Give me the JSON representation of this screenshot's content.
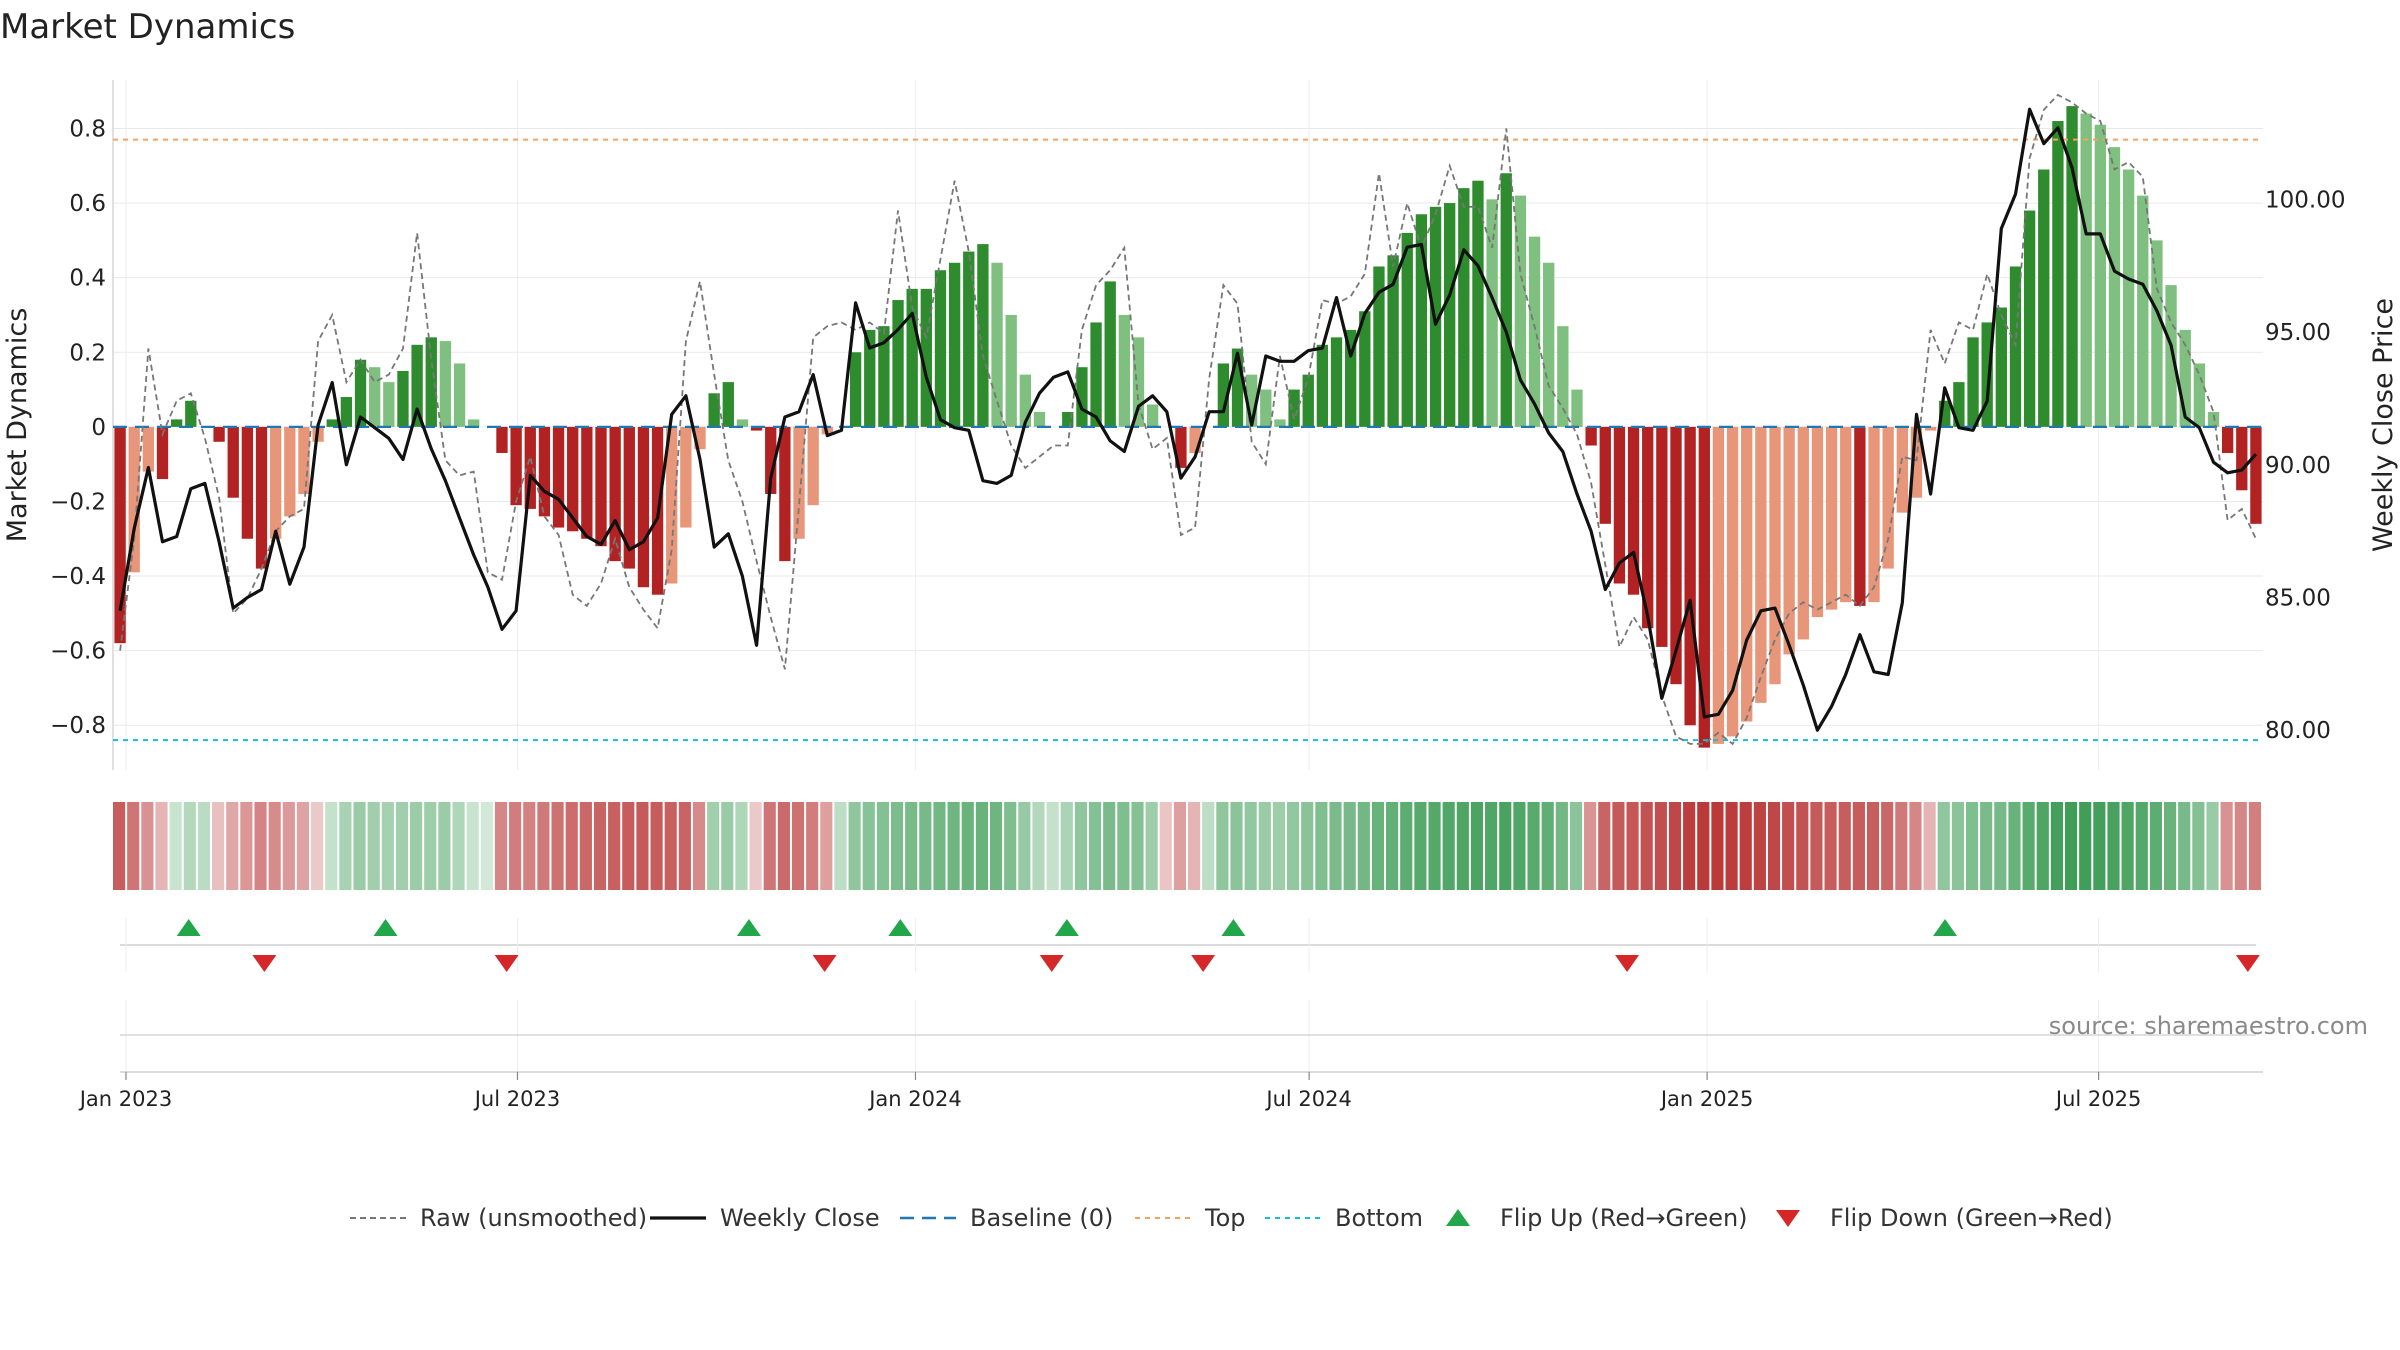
{
  "chart_data": {
    "type": "bar",
    "title": "Market Dynamics",
    "ylabel_left": "Market Dynamics",
    "ylabel_right": "Weekly Close Price",
    "source": "source: sharemaestro.com",
    "ylim_left": [
      -0.92,
      0.93
    ],
    "ylim_right": [
      78.5,
      104.5
    ],
    "yticks_left": [
      "0.8",
      "0.6",
      "0.4",
      "0.2",
      "0",
      "−0.2",
      "−0.4",
      "−0.6",
      "−0.8"
    ],
    "yticks_left_values": [
      0.8,
      0.6,
      0.4,
      0.2,
      0,
      -0.2,
      -0.4,
      -0.6,
      -0.8
    ],
    "yticks_right": [
      "100.00",
      "95.00",
      "90.00",
      "85.00",
      "80.00"
    ],
    "yticks_right_values": [
      100,
      95,
      90,
      85,
      80
    ],
    "x_start": "2022-12-26",
    "x_end": "2025-09-15",
    "xtick_labels": [
      "Jan 2023",
      "Jul 2023",
      "Jan 2024",
      "Jul 2024",
      "Jan 2025",
      "Jul 2025"
    ],
    "xtick_dates": [
      "2023-01-01",
      "2023-07-01",
      "2024-01-01",
      "2024-07-01",
      "2025-01-01",
      "2025-07-01"
    ],
    "top_threshold": 0.77,
    "bottom_threshold": -0.84,
    "grid": true,
    "legend_position": "bottom-center",
    "colors": {
      "strong_up": "#2e8b2e",
      "weak_up": "#7fbf7f",
      "strong_down": "#b22222",
      "weak_down": "#e8967a",
      "close": "#111111",
      "raw": "#777777",
      "baseline": "#1f77b4",
      "top": "#f4a261",
      "bottom": "#17becf",
      "flip_up": "#22a64a",
      "flip_down": "#d62728"
    },
    "series": [
      {
        "name": "Market Dynamics",
        "values": [
          -0.58,
          -0.39,
          -0.12,
          -0.14,
          0.02,
          0.07,
          0.0,
          -0.04,
          -0.19,
          -0.3,
          -0.38,
          -0.3,
          -0.24,
          -0.18,
          -0.04,
          0.02,
          0.08,
          0.18,
          0.16,
          0.12,
          0.15,
          0.22,
          0.24,
          0.23,
          0.17,
          0.02,
          0.0,
          -0.07,
          -0.21,
          -0.22,
          -0.24,
          -0.27,
          -0.28,
          -0.3,
          -0.32,
          -0.36,
          -0.38,
          -0.43,
          -0.45,
          -0.42,
          -0.27,
          -0.06,
          0.09,
          0.12,
          0.02,
          -0.01,
          -0.18,
          -0.36,
          -0.3,
          -0.21,
          -0.02,
          0.0,
          0.2,
          0.26,
          0.27,
          0.34,
          0.37,
          0.37,
          0.42,
          0.44,
          0.47,
          0.49,
          0.44,
          0.3,
          0.14,
          0.04,
          0.0,
          0.04,
          0.16,
          0.28,
          0.39,
          0.3,
          0.24,
          0.06,
          0.0,
          -0.11,
          -0.07,
          0.0,
          0.17,
          0.21,
          0.14,
          0.1,
          0.02,
          0.1,
          0.14,
          0.22,
          0.24,
          0.26,
          0.31,
          0.43,
          0.46,
          0.52,
          0.57,
          0.59,
          0.6,
          0.64,
          0.66,
          0.61,
          0.68,
          0.62,
          0.51,
          0.44,
          0.27,
          0.1,
          -0.05,
          -0.26,
          -0.42,
          -0.45,
          -0.54,
          -0.59,
          -0.69,
          -0.8,
          -0.86,
          -0.85,
          -0.83,
          -0.79,
          -0.74,
          -0.69,
          -0.61,
          -0.57,
          -0.51,
          -0.49,
          -0.47,
          -0.48,
          -0.47,
          -0.38,
          -0.23,
          -0.19,
          -0.01,
          0.07,
          0.12,
          0.24,
          0.28,
          0.32,
          0.43,
          0.58,
          0.69,
          0.82,
          0.86,
          0.84,
          0.81,
          0.75,
          0.69,
          0.62,
          0.5,
          0.38,
          0.26,
          0.17,
          0.04,
          -0.07,
          -0.17,
          -0.26
        ]
      },
      {
        "name": "Raw (unsmoothed)",
        "values": [
          -0.6,
          -0.3,
          0.21,
          -0.02,
          0.07,
          0.09,
          -0.03,
          -0.19,
          -0.5,
          -0.46,
          -0.38,
          -0.28,
          -0.24,
          -0.22,
          0.23,
          0.3,
          0.12,
          0.18,
          0.12,
          0.14,
          0.21,
          0.52,
          0.18,
          -0.09,
          -0.13,
          -0.12,
          -0.39,
          -0.41,
          -0.2,
          -0.08,
          -0.24,
          -0.29,
          -0.45,
          -0.48,
          -0.42,
          -0.3,
          -0.43,
          -0.49,
          -0.54,
          -0.33,
          0.23,
          0.39,
          0.14,
          -0.09,
          -0.2,
          -0.36,
          -0.51,
          -0.65,
          -0.21,
          0.24,
          0.27,
          0.28,
          0.26,
          0.28,
          0.25,
          0.58,
          0.32,
          0.24,
          0.45,
          0.66,
          0.47,
          0.19,
          0.07,
          -0.05,
          -0.11,
          -0.08,
          -0.05,
          -0.05,
          0.26,
          0.38,
          0.42,
          0.48,
          0.06,
          -0.06,
          -0.03,
          -0.29,
          -0.27,
          0.13,
          0.38,
          0.33,
          -0.04,
          -0.1,
          0.19,
          0.02,
          0.13,
          0.34,
          0.33,
          0.35,
          0.41,
          0.68,
          0.43,
          0.6,
          0.48,
          0.57,
          0.7,
          0.59,
          0.59,
          0.48,
          0.8,
          0.41,
          0.27,
          0.11,
          0.05,
          -0.02,
          -0.15,
          -0.37,
          -0.59,
          -0.51,
          -0.57,
          -0.72,
          -0.83,
          -0.85,
          -0.85,
          -0.82,
          -0.85,
          -0.78,
          -0.67,
          -0.57,
          -0.5,
          -0.47,
          -0.49,
          -0.47,
          -0.45,
          -0.48,
          -0.43,
          -0.3,
          -0.08,
          -0.09,
          0.26,
          0.17,
          0.28,
          0.26,
          0.41,
          0.3,
          0.22,
          0.72,
          0.85,
          0.89,
          0.87,
          0.84,
          0.82,
          0.69,
          0.71,
          0.67,
          0.37,
          0.28,
          0.22,
          0.14,
          0.04,
          -0.25,
          -0.22,
          -0.3
        ]
      },
      {
        "name": "Weekly Close",
        "values": [
          84.5,
          87.6,
          89.9,
          87.1,
          87.3,
          89.1,
          89.3,
          87.1,
          84.6,
          85.0,
          85.3,
          87.5,
          85.5,
          86.9,
          91.5,
          93.1,
          90.0,
          91.8,
          91.4,
          91.0,
          90.2,
          92.1,
          90.6,
          89.4,
          88.0,
          86.6,
          85.4,
          83.8,
          84.5,
          89.6,
          89.0,
          88.7,
          88.0,
          87.3,
          87.0,
          87.9,
          86.8,
          87.1,
          88.0,
          91.9,
          92.6,
          90.2,
          86.9,
          87.4,
          85.8,
          83.2,
          89.5,
          91.8,
          92.0,
          93.4,
          91.1,
          91.3,
          96.1,
          94.4,
          94.6,
          95.1,
          95.7,
          93.3,
          91.7,
          91.4,
          91.3,
          89.4,
          89.3,
          89.6,
          91.6,
          92.7,
          93.3,
          93.5,
          92.1,
          91.8,
          90.9,
          90.5,
          92.2,
          92.6,
          92.0,
          89.5,
          90.3,
          92.0,
          92.0,
          94.2,
          91.5,
          94.1,
          93.9,
          93.9,
          94.3,
          94.4,
          96.3,
          94.1,
          95.7,
          96.5,
          96.8,
          98.2,
          98.3,
          95.3,
          96.4,
          98.1,
          97.5,
          96.3,
          95.0,
          93.2,
          92.3,
          91.2,
          90.5,
          88.9,
          87.5,
          85.3,
          86.3,
          86.7,
          84.3,
          81.2,
          83.0,
          84.9,
          80.5,
          80.6,
          81.5,
          83.4,
          84.5,
          84.6,
          83.2,
          81.7,
          80.0,
          80.9,
          82.1,
          83.6,
          82.2,
          82.1,
          84.8,
          91.9,
          88.9,
          92.9,
          91.4,
          91.3,
          92.4,
          98.9,
          100.2,
          103.4,
          102.1,
          102.7,
          101.2,
          98.7,
          98.7,
          97.3,
          97.0,
          96.8,
          95.8,
          94.5,
          91.8,
          91.4,
          90.1,
          89.7,
          89.8,
          90.4
        ]
      }
    ],
    "regime_strip": [
      -0.62,
      -0.5,
      -0.36,
      -0.2,
      0.1,
      0.2,
      0.16,
      -0.14,
      -0.26,
      -0.34,
      -0.43,
      -0.39,
      -0.33,
      -0.28,
      -0.1,
      0.12,
      0.25,
      0.32,
      0.28,
      0.26,
      0.28,
      0.31,
      0.3,
      0.31,
      0.22,
      0.1,
      0.05,
      -0.42,
      -0.46,
      -0.44,
      -0.48,
      -0.52,
      -0.54,
      -0.56,
      -0.58,
      -0.6,
      -0.62,
      -0.63,
      -0.62,
      -0.6,
      -0.58,
      -0.4,
      0.28,
      0.32,
      0.22,
      -0.1,
      -0.5,
      -0.55,
      -0.52,
      -0.46,
      -0.3,
      0.15,
      0.36,
      0.4,
      0.42,
      0.45,
      0.47,
      0.48,
      0.5,
      0.52,
      0.54,
      0.55,
      0.52,
      0.44,
      0.33,
      0.2,
      0.12,
      0.24,
      0.36,
      0.42,
      0.46,
      0.44,
      0.41,
      0.3,
      -0.12,
      -0.3,
      -0.2,
      0.15,
      0.36,
      0.38,
      0.35,
      0.32,
      0.3,
      0.35,
      0.39,
      0.44,
      0.46,
      0.48,
      0.5,
      0.55,
      0.57,
      0.6,
      0.63,
      0.64,
      0.65,
      0.67,
      0.68,
      0.66,
      0.69,
      0.66,
      0.62,
      0.58,
      0.5,
      0.38,
      -0.35,
      -0.58,
      -0.63,
      -0.64,
      -0.66,
      -0.68,
      -0.72,
      -0.76,
      -0.78,
      -0.78,
      -0.77,
      -0.76,
      -0.74,
      -0.72,
      -0.68,
      -0.66,
      -0.63,
      -0.62,
      -0.61,
      -0.62,
      -0.61,
      -0.56,
      -0.48,
      -0.42,
      -0.2,
      0.36,
      0.38,
      0.44,
      0.46,
      0.48,
      0.55,
      0.62,
      0.67,
      0.72,
      0.74,
      0.73,
      0.72,
      0.7,
      0.67,
      0.64,
      0.6,
      0.54,
      0.48,
      0.42,
      0.32,
      -0.36,
      -0.42,
      -0.45
    ],
    "flip_up_dates": [
      "2023-01-30",
      "2023-05-01",
      "2023-10-16",
      "2023-12-25",
      "2024-03-11",
      "2024-05-27",
      "2025-04-21"
    ],
    "flip_down_dates": [
      "2023-03-06",
      "2023-06-26",
      "2023-11-20",
      "2024-03-04",
      "2024-05-13",
      "2024-11-25",
      "2025-09-08"
    ],
    "legend": [
      {
        "key": "raw",
        "label": "Raw (unsmoothed)"
      },
      {
        "key": "close",
        "label": "Weekly Close"
      },
      {
        "key": "baseline",
        "label": "Baseline (0)"
      },
      {
        "key": "top",
        "label": "Top"
      },
      {
        "key": "bottom",
        "label": "Bottom"
      },
      {
        "key": "flip_up",
        "label": "Flip Up (Red→Green)"
      },
      {
        "key": "flip_down",
        "label": "Flip Down (Green→Red)"
      }
    ]
  }
}
